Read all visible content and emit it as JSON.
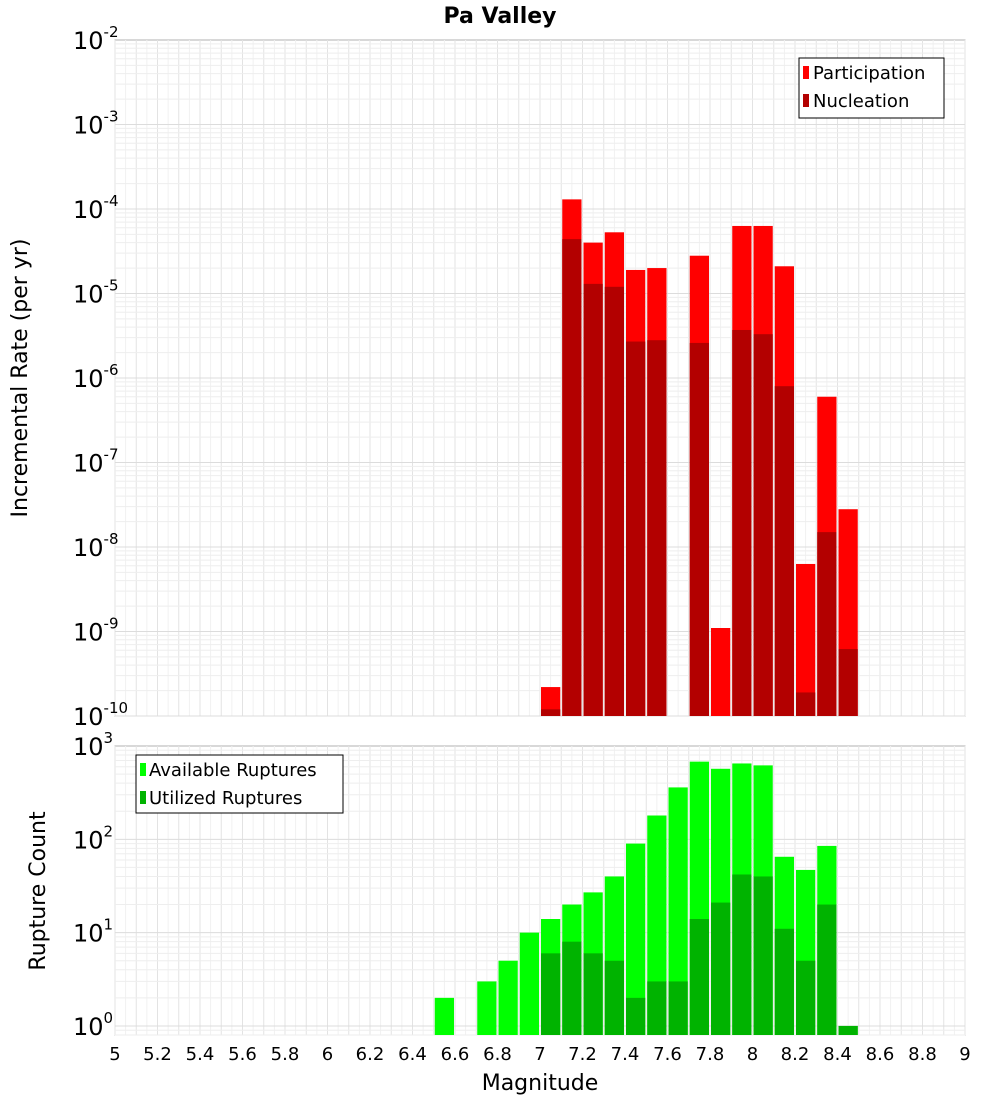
{
  "figure": {
    "title": "Pa Valley"
  },
  "chart_data": [
    {
      "type": "bar",
      "title": "Pa Valley",
      "xlabel": "Magnitude",
      "ylabel": "Incremental Rate (per yr)",
      "yscale": "log",
      "ylim": [
        1e-10,
        0.01
      ],
      "xlim": [
        5,
        9
      ],
      "bar_width": 0.1,
      "ytick_labels": [
        {
          "base": "10",
          "exp": "-2",
          "value": 0.01
        },
        {
          "base": "10",
          "exp": "-3",
          "value": 0.001
        },
        {
          "base": "10",
          "exp": "-4",
          "value": 0.0001
        },
        {
          "base": "10",
          "exp": "-5",
          "value": 1e-05
        },
        {
          "base": "10",
          "exp": "-6",
          "value": 1e-06
        },
        {
          "base": "10",
          "exp": "-7",
          "value": 1e-07
        },
        {
          "base": "10",
          "exp": "-8",
          "value": 1e-08
        },
        {
          "base": "10",
          "exp": "-9",
          "value": 1e-09
        },
        {
          "base": "10",
          "exp": "-10",
          "value": 1e-10
        }
      ],
      "grid": true,
      "legend_position": "top-right",
      "x": [
        7.05,
        7.15,
        7.25,
        7.35,
        7.45,
        7.55,
        7.75,
        7.85,
        7.95,
        8.05,
        8.15,
        8.25,
        8.35,
        8.45
      ],
      "series": [
        {
          "name": "Participation",
          "color": "#ff0000",
          "values": [
            2.2e-10,
            0.00013,
            4e-05,
            5.3e-05,
            1.9e-05,
            2e-05,
            2.8e-05,
            1.1e-09,
            6.3e-05,
            6.3e-05,
            2.1e-05,
            6.3e-09,
            6e-07,
            2.8e-08
          ]
        },
        {
          "name": "Nucleation",
          "color": "#b30000",
          "values": [
            1.2e-10,
            4.4e-05,
            1.3e-05,
            1.2e-05,
            2.7e-06,
            2.8e-06,
            2.6e-06,
            null,
            3.7e-06,
            3.3e-06,
            8e-07,
            1.9e-10,
            1.5e-08,
            6.2e-10
          ]
        }
      ]
    },
    {
      "type": "bar",
      "xlabel": "Magnitude",
      "ylabel": "Rupture Count",
      "yscale": "log",
      "ylim": [
        0.8,
        1000
      ],
      "xlim": [
        5,
        9
      ],
      "bar_width": 0.1,
      "ytick_labels": [
        {
          "base": "10",
          "exp": "3",
          "value": 1000
        },
        {
          "base": "10",
          "exp": "2",
          "value": 100
        },
        {
          "base": "10",
          "exp": "1",
          "value": 10
        },
        {
          "base": "10",
          "exp": "0",
          "value": 1
        }
      ],
      "xtick_labels": [
        "5",
        "5.2",
        "5.4",
        "5.6",
        "5.8",
        "6",
        "6.2",
        "6.4",
        "6.6",
        "6.8",
        "7",
        "7.2",
        "7.4",
        "7.6",
        "7.8",
        "8",
        "8.2",
        "8.4",
        "8.6",
        "8.8",
        "9"
      ],
      "grid": true,
      "legend_position": "top-left",
      "x": [
        6.55,
        6.75,
        6.85,
        6.95,
        7.05,
        7.15,
        7.25,
        7.35,
        7.45,
        7.55,
        7.65,
        7.75,
        7.85,
        7.95,
        8.05,
        8.15,
        8.25,
        8.35,
        8.45
      ],
      "series": [
        {
          "name": "Available Ruptures",
          "color": "#00ff00",
          "values": [
            2,
            3,
            5,
            10,
            14,
            20,
            27,
            40,
            90,
            180,
            360,
            680,
            570,
            650,
            620,
            65,
            47,
            85,
            1
          ]
        },
        {
          "name": "Utilized Ruptures",
          "color": "#00b300",
          "values": [
            null,
            null,
            null,
            null,
            6,
            8,
            6,
            5,
            2,
            3,
            3,
            14,
            21,
            42,
            40,
            11,
            5,
            20,
            1
          ]
        }
      ]
    }
  ]
}
